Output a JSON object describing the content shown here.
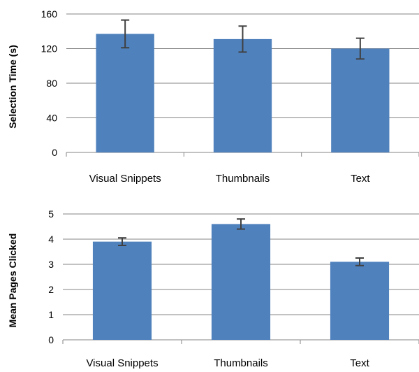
{
  "chart_data": [
    {
      "type": "bar",
      "categories": [
        "Visual Snippets",
        "Thumbnails",
        "Text"
      ],
      "values": [
        137,
        131,
        120
      ],
      "error": [
        16,
        15,
        12
      ],
      "ylabel": "Selection Time (s)",
      "xlabel": "",
      "title": "",
      "ylim": [
        0,
        160
      ],
      "yticks": [
        0,
        40,
        80,
        120,
        160
      ],
      "bar_color": "#4F81BD",
      "grid": "horizontal",
      "legend": "none"
    },
    {
      "type": "bar",
      "categories": [
        "Visual Snippets",
        "Thumbnails",
        "Text"
      ],
      "values": [
        3.9,
        4.6,
        3.1
      ],
      "error": [
        0.15,
        0.2,
        0.15
      ],
      "ylabel": "Mean Pages Clicked",
      "xlabel": "",
      "title": "",
      "ylim": [
        0,
        5
      ],
      "yticks": [
        0,
        1,
        2,
        3,
        4,
        5
      ],
      "bar_color": "#4F81BD",
      "grid": "horizontal",
      "legend": "none"
    }
  ]
}
